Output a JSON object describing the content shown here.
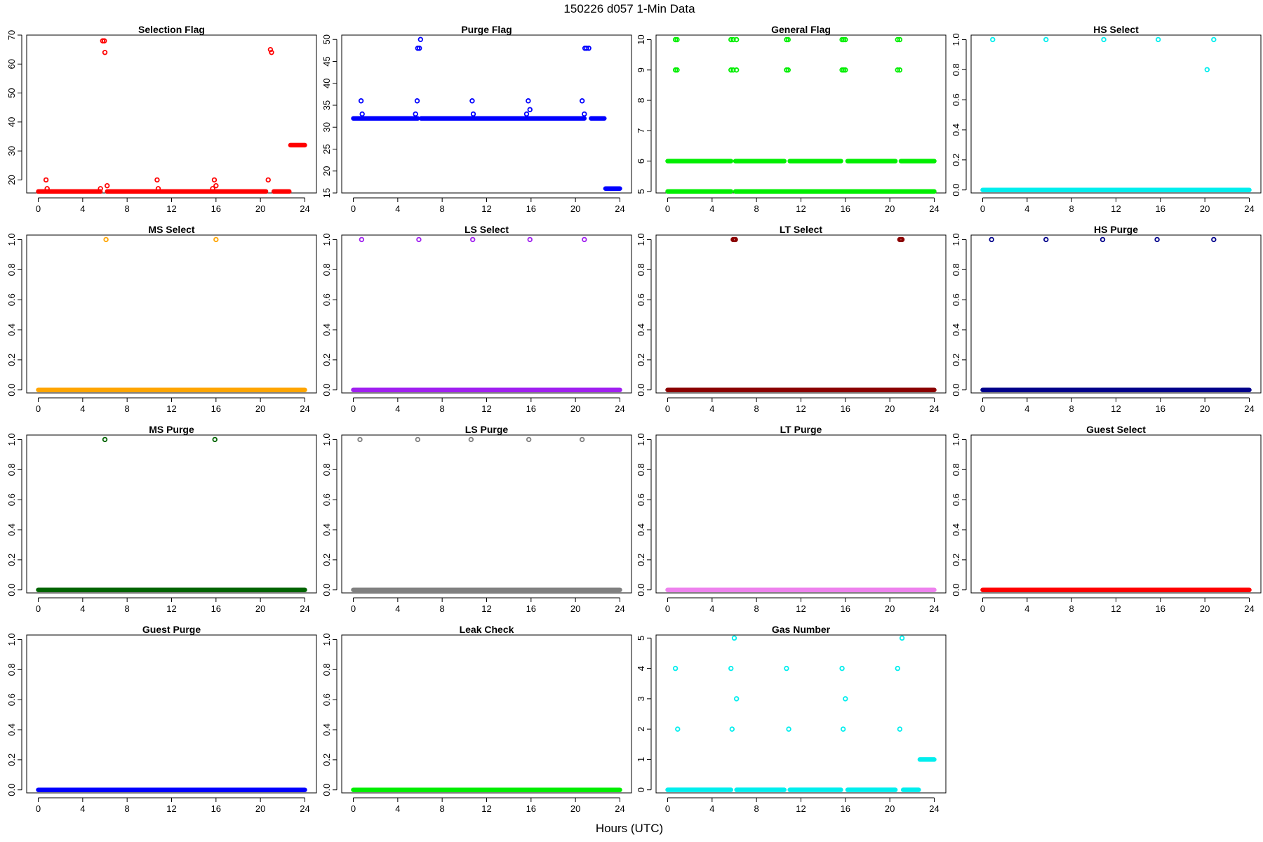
{
  "suptitle": "150226   d057   1-Min Data",
  "xlabel": "Hours (UTC)",
  "chart_data": [
    {
      "type": "scatter",
      "title": "Selection Flag",
      "color": "#ff0000",
      "xlim": [
        0,
        24
      ],
      "ylim": [
        15.5,
        70
      ],
      "xticks": [
        0,
        4,
        8,
        12,
        16,
        20,
        24
      ],
      "yticks": [
        20,
        30,
        40,
        50,
        60,
        70
      ],
      "segments": [
        [
          0,
          5.6,
          16
        ],
        [
          6.2,
          20.5,
          16
        ],
        [
          21.2,
          22.6,
          16
        ],
        [
          22.7,
          24,
          32
        ]
      ],
      "points": [
        [
          0.7,
          20
        ],
        [
          0.8,
          17
        ],
        [
          5.6,
          17
        ],
        [
          5.8,
          68
        ],
        [
          5.95,
          68
        ],
        [
          6.0,
          64
        ],
        [
          6.2,
          18
        ],
        [
          10.7,
          20
        ],
        [
          10.8,
          17
        ],
        [
          15.7,
          17
        ],
        [
          15.85,
          20
        ],
        [
          16.0,
          18
        ],
        [
          20.7,
          20
        ],
        [
          20.9,
          65
        ],
        [
          21.0,
          64
        ]
      ]
    },
    {
      "type": "scatter",
      "title": "Purge Flag",
      "color": "#0000ff",
      "xlim": [
        0,
        24
      ],
      "ylim": [
        15,
        51
      ],
      "xticks": [
        0,
        4,
        8,
        12,
        16,
        20,
        24
      ],
      "yticks": [
        15,
        20,
        25,
        30,
        35,
        40,
        45,
        50
      ],
      "segments": [
        [
          0,
          5.8,
          32
        ],
        [
          6.1,
          20.8,
          32
        ],
        [
          21.4,
          22.6,
          32
        ],
        [
          22.7,
          24,
          16
        ]
      ],
      "points": [
        [
          0.7,
          36
        ],
        [
          0.8,
          33
        ],
        [
          5.6,
          33
        ],
        [
          5.75,
          36
        ],
        [
          5.8,
          48
        ],
        [
          5.95,
          48
        ],
        [
          6.05,
          50
        ],
        [
          10.7,
          36
        ],
        [
          10.8,
          33
        ],
        [
          15.6,
          33
        ],
        [
          15.75,
          36
        ],
        [
          15.9,
          34
        ],
        [
          20.6,
          36
        ],
        [
          20.8,
          33
        ],
        [
          20.85,
          48
        ],
        [
          21.0,
          48
        ],
        [
          21.2,
          48
        ]
      ]
    },
    {
      "type": "scatter",
      "title": "General Flag",
      "color": "#00ee00",
      "xlim": [
        0,
        24
      ],
      "ylim": [
        4.95,
        10.15
      ],
      "xticks": [
        0,
        4,
        8,
        12,
        16,
        20,
        24
      ],
      "yticks": [
        5,
        6,
        7,
        8,
        9,
        10
      ],
      "segments": [
        [
          0,
          5.7,
          5
        ],
        [
          6.1,
          24,
          5
        ],
        [
          0,
          5.7,
          6
        ],
        [
          6.1,
          10.5,
          6
        ],
        [
          11.0,
          15.6,
          6
        ],
        [
          16.2,
          20.5,
          6
        ],
        [
          21.0,
          24,
          6
        ]
      ],
      "points": [
        [
          0.7,
          10
        ],
        [
          0.85,
          10
        ],
        [
          0.7,
          9
        ],
        [
          0.85,
          9
        ],
        [
          5.7,
          10
        ],
        [
          5.9,
          10
        ],
        [
          6.2,
          10
        ],
        [
          5.7,
          9
        ],
        [
          5.9,
          9
        ],
        [
          6.2,
          9
        ],
        [
          10.7,
          10
        ],
        [
          10.85,
          10
        ],
        [
          10.7,
          9
        ],
        [
          10.85,
          9
        ],
        [
          15.7,
          10
        ],
        [
          15.85,
          10
        ],
        [
          16.0,
          10
        ],
        [
          15.7,
          9
        ],
        [
          15.85,
          9
        ],
        [
          16.0,
          9
        ],
        [
          20.7,
          10
        ],
        [
          20.9,
          10
        ],
        [
          20.7,
          9
        ],
        [
          20.9,
          9
        ]
      ]
    },
    {
      "type": "scatter",
      "title": "HS Select",
      "color": "#00eeee",
      "xlim": [
        0,
        24
      ],
      "ylim": [
        -0.02,
        1.03
      ],
      "xticks": [
        0,
        4,
        8,
        12,
        16,
        20,
        24
      ],
      "yticks": [
        0.0,
        0.2,
        0.4,
        0.6,
        0.8,
        1.0
      ],
      "segments": [
        [
          0,
          24,
          0
        ]
      ],
      "points": [
        [
          0.9,
          1
        ],
        [
          5.7,
          1
        ],
        [
          10.9,
          1
        ],
        [
          15.8,
          1
        ],
        [
          20.2,
          0.8
        ],
        [
          20.8,
          1
        ]
      ]
    },
    {
      "type": "scatter",
      "title": "MS Select",
      "color": "#ffa500",
      "xlim": [
        0,
        24
      ],
      "ylim": [
        -0.02,
        1.03
      ],
      "xticks": [
        0,
        4,
        8,
        12,
        16,
        20,
        24
      ],
      "yticks": [
        0.0,
        0.2,
        0.4,
        0.6,
        0.8,
        1.0
      ],
      "segments": [
        [
          0,
          24,
          0
        ]
      ],
      "points": [
        [
          6.1,
          1
        ],
        [
          16.0,
          1
        ]
      ]
    },
    {
      "type": "scatter",
      "title": "LS Select",
      "color": "#a020f0",
      "xlim": [
        0,
        24
      ],
      "ylim": [
        -0.02,
        1.03
      ],
      "xticks": [
        0,
        4,
        8,
        12,
        16,
        20,
        24
      ],
      "yticks": [
        0.0,
        0.2,
        0.4,
        0.6,
        0.8,
        1.0
      ],
      "segments": [
        [
          0,
          24,
          0
        ]
      ],
      "points": [
        [
          0.75,
          1
        ],
        [
          5.9,
          1
        ],
        [
          10.75,
          1
        ],
        [
          15.9,
          1
        ],
        [
          20.8,
          1
        ]
      ]
    },
    {
      "type": "scatter",
      "title": "LT Select",
      "color": "#8b0000",
      "xlim": [
        0,
        24
      ],
      "ylim": [
        -0.02,
        1.03
      ],
      "xticks": [
        0,
        4,
        8,
        12,
        16,
        20,
        24
      ],
      "yticks": [
        0.0,
        0.2,
        0.4,
        0.6,
        0.8,
        1.0
      ],
      "segments": [
        [
          0,
          24,
          0
        ]
      ],
      "points": [
        [
          5.9,
          1
        ],
        [
          6.0,
          1
        ],
        [
          6.1,
          1
        ],
        [
          20.9,
          1
        ],
        [
          21.0,
          1
        ],
        [
          21.1,
          1
        ]
      ]
    },
    {
      "type": "scatter",
      "title": "HS Purge",
      "color": "#00008b",
      "xlim": [
        0,
        24
      ],
      "ylim": [
        -0.02,
        1.03
      ],
      "xticks": [
        0,
        4,
        8,
        12,
        16,
        20,
        24
      ],
      "yticks": [
        0.0,
        0.2,
        0.4,
        0.6,
        0.8,
        1.0
      ],
      "segments": [
        [
          0,
          24,
          0
        ]
      ],
      "points": [
        [
          0.8,
          1
        ],
        [
          5.7,
          1
        ],
        [
          10.8,
          1
        ],
        [
          15.7,
          1
        ],
        [
          20.8,
          1
        ]
      ]
    },
    {
      "type": "scatter",
      "title": "MS Purge",
      "color": "#006400",
      "xlim": [
        0,
        24
      ],
      "ylim": [
        -0.02,
        1.03
      ],
      "xticks": [
        0,
        4,
        8,
        12,
        16,
        20,
        24
      ],
      "yticks": [
        0.0,
        0.2,
        0.4,
        0.6,
        0.8,
        1.0
      ],
      "segments": [
        [
          0,
          24,
          0
        ]
      ],
      "points": [
        [
          6.0,
          1
        ],
        [
          15.9,
          1
        ]
      ]
    },
    {
      "type": "scatter",
      "title": "LS Purge",
      "color": "#808080",
      "xlim": [
        0,
        24
      ],
      "ylim": [
        -0.02,
        1.03
      ],
      "xticks": [
        0,
        4,
        8,
        12,
        16,
        20,
        24
      ],
      "yticks": [
        0.0,
        0.2,
        0.4,
        0.6,
        0.8,
        1.0
      ],
      "segments": [
        [
          0,
          24,
          0
        ]
      ],
      "points": [
        [
          0.6,
          1
        ],
        [
          5.8,
          1
        ],
        [
          10.6,
          1
        ],
        [
          15.8,
          1
        ],
        [
          20.6,
          1
        ]
      ]
    },
    {
      "type": "scatter",
      "title": "LT Purge",
      "color": "#ee82ee",
      "xlim": [
        0,
        24
      ],
      "ylim": [
        -0.02,
        1.03
      ],
      "xticks": [
        0,
        4,
        8,
        12,
        16,
        20,
        24
      ],
      "yticks": [
        0.0,
        0.2,
        0.4,
        0.6,
        0.8,
        1.0
      ],
      "segments": [
        [
          0,
          24,
          0
        ]
      ],
      "points": []
    },
    {
      "type": "scatter",
      "title": "Guest Select",
      "color": "#ff0000",
      "xlim": [
        0,
        24
      ],
      "ylim": [
        -0.02,
        1.03
      ],
      "xticks": [
        0,
        4,
        8,
        12,
        16,
        20,
        24
      ],
      "yticks": [
        0.0,
        0.2,
        0.4,
        0.6,
        0.8,
        1.0
      ],
      "segments": [
        [
          0,
          24,
          0
        ]
      ],
      "points": []
    },
    {
      "type": "scatter",
      "title": "Guest Purge",
      "color": "#0000ff",
      "xlim": [
        0,
        24
      ],
      "ylim": [
        -0.02,
        1.03
      ],
      "xticks": [
        0,
        4,
        8,
        12,
        16,
        20,
        24
      ],
      "yticks": [
        0.0,
        0.2,
        0.4,
        0.6,
        0.8,
        1.0
      ],
      "segments": [
        [
          0,
          24,
          0
        ]
      ],
      "points": []
    },
    {
      "type": "scatter",
      "title": "Leak Check",
      "color": "#00ee00",
      "xlim": [
        0,
        24
      ],
      "ylim": [
        -0.02,
        1.03
      ],
      "xticks": [
        0,
        4,
        8,
        12,
        16,
        20,
        24
      ],
      "yticks": [
        0.0,
        0.2,
        0.4,
        0.6,
        0.8,
        1.0
      ],
      "segments": [
        [
          0,
          24,
          0
        ]
      ],
      "points": []
    },
    {
      "type": "scatter",
      "title": "Gas Number",
      "color": "#00eeee",
      "xlim": [
        0,
        24
      ],
      "ylim": [
        -0.1,
        5.1
      ],
      "xticks": [
        0,
        4,
        8,
        12,
        16,
        20,
        24
      ],
      "yticks": [
        0,
        1,
        2,
        3,
        4,
        5
      ],
      "segments": [
        [
          0,
          5.7,
          0
        ],
        [
          6.2,
          10.5,
          0
        ],
        [
          11.0,
          15.6,
          0
        ],
        [
          16.2,
          20.5,
          0
        ],
        [
          21.2,
          22.6,
          0
        ],
        [
          22.7,
          24,
          1
        ]
      ],
      "points": [
        [
          0.7,
          4
        ],
        [
          0.9,
          2
        ],
        [
          5.7,
          4
        ],
        [
          5.8,
          2
        ],
        [
          6.0,
          5
        ],
        [
          6.2,
          3
        ],
        [
          10.7,
          4
        ],
        [
          10.9,
          2
        ],
        [
          15.7,
          4
        ],
        [
          15.8,
          2
        ],
        [
          16.0,
          3
        ],
        [
          20.7,
          4
        ],
        [
          20.9,
          2
        ],
        [
          21.1,
          5
        ]
      ]
    }
  ]
}
